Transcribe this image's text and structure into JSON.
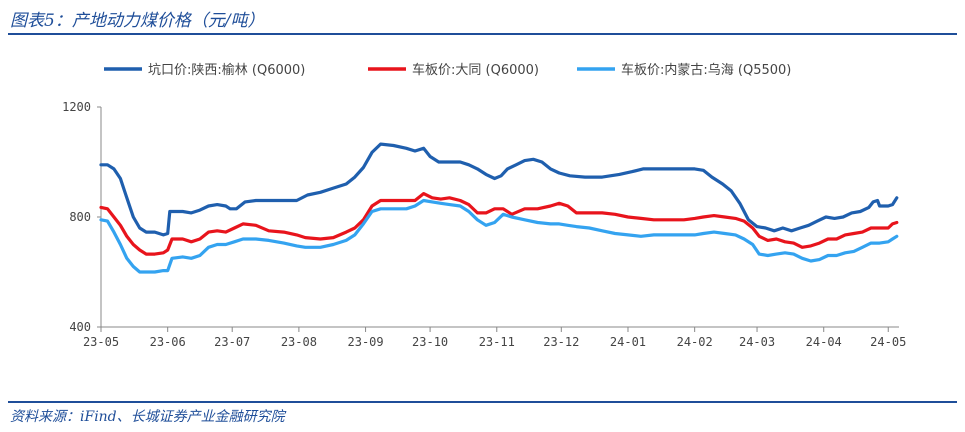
{
  "header": {
    "title": "图表5：产地动力煤价格（元/吨）"
  },
  "footer": {
    "source": "资料来源：iFind、长城证券产业金融研究院"
  },
  "chart_data": {
    "type": "line",
    "x_ticks": [
      "23-05",
      "23-06",
      "23-07",
      "23-08",
      "23-09",
      "23-10",
      "23-11",
      "23-12",
      "24-01",
      "24-02",
      "24-03",
      "24-04",
      "24-05"
    ],
    "y_ticks": [
      "400",
      "800",
      "1200"
    ],
    "ylim": [
      400,
      1200
    ],
    "xlim": [
      "2023-05-01",
      "2024-05-06"
    ],
    "grid": false,
    "legend_position": "top",
    "series": [
      {
        "name": "坑口价:陕西:榆林 (Q6000)",
        "color": "#1f5fae",
        "points": [
          [
            "2023-05-01",
            990
          ],
          [
            "2023-05-04",
            990
          ],
          [
            "2023-05-07",
            975
          ],
          [
            "2023-05-10",
            940
          ],
          [
            "2023-05-13",
            870
          ],
          [
            "2023-05-16",
            800
          ],
          [
            "2023-05-19",
            760
          ],
          [
            "2023-05-22",
            745
          ],
          [
            "2023-05-26",
            745
          ],
          [
            "2023-05-30",
            735
          ],
          [
            "2023-06-01",
            740
          ],
          [
            "2023-06-02",
            820
          ],
          [
            "2023-06-08",
            820
          ],
          [
            "2023-06-12",
            815
          ],
          [
            "2023-06-16",
            825
          ],
          [
            "2023-06-20",
            840
          ],
          [
            "2023-06-24",
            845
          ],
          [
            "2023-06-28",
            840
          ],
          [
            "2023-06-30",
            830
          ],
          [
            "2023-07-03",
            830
          ],
          [
            "2023-07-07",
            855
          ],
          [
            "2023-07-12",
            860
          ],
          [
            "2023-07-18",
            860
          ],
          [
            "2023-07-25",
            860
          ],
          [
            "2023-07-31",
            860
          ],
          [
            "2023-08-05",
            880
          ],
          [
            "2023-08-11",
            890
          ],
          [
            "2023-08-17",
            905
          ],
          [
            "2023-08-23",
            920
          ],
          [
            "2023-08-27",
            945
          ],
          [
            "2023-08-31",
            980
          ],
          [
            "2023-09-04",
            1035
          ],
          [
            "2023-09-08",
            1065
          ],
          [
            "2023-09-14",
            1060
          ],
          [
            "2023-09-20",
            1050
          ],
          [
            "2023-09-24",
            1040
          ],
          [
            "2023-09-28",
            1050
          ],
          [
            "2023-10-01",
            1020
          ],
          [
            "2023-10-05",
            1000
          ],
          [
            "2023-10-10",
            1000
          ],
          [
            "2023-10-15",
            1000
          ],
          [
            "2023-10-19",
            990
          ],
          [
            "2023-10-23",
            975
          ],
          [
            "2023-10-27",
            955
          ],
          [
            "2023-10-31",
            940
          ],
          [
            "2023-11-03",
            950
          ],
          [
            "2023-11-06",
            975
          ],
          [
            "2023-11-10",
            990
          ],
          [
            "2023-11-14",
            1005
          ],
          [
            "2023-11-18",
            1010
          ],
          [
            "2023-11-22",
            1000
          ],
          [
            "2023-11-26",
            975
          ],
          [
            "2023-11-30",
            960
          ],
          [
            "2023-12-05",
            950
          ],
          [
            "2023-12-12",
            945
          ],
          [
            "2023-12-20",
            945
          ],
          [
            "2023-12-28",
            955
          ],
          [
            "2024-01-03",
            965
          ],
          [
            "2024-01-08",
            975
          ],
          [
            "2024-01-15",
            975
          ],
          [
            "2024-01-25",
            975
          ],
          [
            "2024-02-01",
            975
          ],
          [
            "2024-02-05",
            970
          ],
          [
            "2024-02-09",
            945
          ],
          [
            "2024-02-14",
            920
          ],
          [
            "2024-02-18",
            895
          ],
          [
            "2024-02-22",
            850
          ],
          [
            "2024-02-26",
            790
          ],
          [
            "2024-03-01",
            765
          ],
          [
            "2024-03-05",
            760
          ],
          [
            "2024-03-09",
            750
          ],
          [
            "2024-03-13",
            760
          ],
          [
            "2024-03-17",
            750
          ],
          [
            "2024-03-21",
            760
          ],
          [
            "2024-03-25",
            770
          ],
          [
            "2024-03-29",
            785
          ],
          [
            "2024-04-02",
            800
          ],
          [
            "2024-04-06",
            795
          ],
          [
            "2024-04-10",
            800
          ],
          [
            "2024-04-14",
            815
          ],
          [
            "2024-04-18",
            820
          ],
          [
            "2024-04-22",
            835
          ],
          [
            "2024-04-24",
            855
          ],
          [
            "2024-04-26",
            860
          ],
          [
            "2024-04-27",
            840
          ],
          [
            "2024-05-01",
            840
          ],
          [
            "2024-05-03",
            845
          ],
          [
            "2024-05-05",
            870
          ]
        ]
      },
      {
        "name": "车板价:大同 (Q6000)",
        "color": "#e8141c",
        "points": [
          [
            "2023-05-01",
            835
          ],
          [
            "2023-05-04",
            830
          ],
          [
            "2023-05-07",
            800
          ],
          [
            "2023-05-10",
            770
          ],
          [
            "2023-05-13",
            730
          ],
          [
            "2023-05-16",
            700
          ],
          [
            "2023-05-19",
            680
          ],
          [
            "2023-05-22",
            665
          ],
          [
            "2023-05-26",
            665
          ],
          [
            "2023-05-30",
            670
          ],
          [
            "2023-06-01",
            680
          ],
          [
            "2023-06-03",
            720
          ],
          [
            "2023-06-08",
            720
          ],
          [
            "2023-06-12",
            710
          ],
          [
            "2023-06-16",
            720
          ],
          [
            "2023-06-20",
            745
          ],
          [
            "2023-06-24",
            750
          ],
          [
            "2023-06-28",
            745
          ],
          [
            "2023-07-02",
            760
          ],
          [
            "2023-07-06",
            775
          ],
          [
            "2023-07-12",
            770
          ],
          [
            "2023-07-18",
            750
          ],
          [
            "2023-07-25",
            745
          ],
          [
            "2023-07-31",
            735
          ],
          [
            "2023-08-04",
            725
          ],
          [
            "2023-08-11",
            720
          ],
          [
            "2023-08-17",
            725
          ],
          [
            "2023-08-23",
            745
          ],
          [
            "2023-08-27",
            760
          ],
          [
            "2023-08-31",
            790
          ],
          [
            "2023-09-04",
            840
          ],
          [
            "2023-09-08",
            860
          ],
          [
            "2023-09-14",
            860
          ],
          [
            "2023-09-20",
            860
          ],
          [
            "2023-09-24",
            860
          ],
          [
            "2023-09-28",
            885
          ],
          [
            "2023-10-02",
            870
          ],
          [
            "2023-10-06",
            865
          ],
          [
            "2023-10-10",
            870
          ],
          [
            "2023-10-15",
            860
          ],
          [
            "2023-10-19",
            845
          ],
          [
            "2023-10-23",
            815
          ],
          [
            "2023-10-27",
            815
          ],
          [
            "2023-10-31",
            830
          ],
          [
            "2023-11-04",
            830
          ],
          [
            "2023-11-08",
            810
          ],
          [
            "2023-11-14",
            830
          ],
          [
            "2023-11-20",
            830
          ],
          [
            "2023-11-26",
            840
          ],
          [
            "2023-11-30",
            850
          ],
          [
            "2023-12-04",
            840
          ],
          [
            "2023-12-08",
            815
          ],
          [
            "2023-12-14",
            815
          ],
          [
            "2023-12-20",
            815
          ],
          [
            "2023-12-26",
            810
          ],
          [
            "2024-01-01",
            800
          ],
          [
            "2024-01-07",
            795
          ],
          [
            "2024-01-13",
            790
          ],
          [
            "2024-01-20",
            790
          ],
          [
            "2024-01-27",
            790
          ],
          [
            "2024-02-01",
            795
          ],
          [
            "2024-02-05",
            800
          ],
          [
            "2024-02-10",
            805
          ],
          [
            "2024-02-15",
            800
          ],
          [
            "2024-02-20",
            795
          ],
          [
            "2024-02-24",
            785
          ],
          [
            "2024-02-28",
            760
          ],
          [
            "2024-03-02",
            730
          ],
          [
            "2024-03-06",
            715
          ],
          [
            "2024-03-10",
            720
          ],
          [
            "2024-03-14",
            710
          ],
          [
            "2024-03-18",
            705
          ],
          [
            "2024-03-22",
            690
          ],
          [
            "2024-03-26",
            695
          ],
          [
            "2024-03-30",
            705
          ],
          [
            "2024-04-03",
            720
          ],
          [
            "2024-04-07",
            720
          ],
          [
            "2024-04-11",
            735
          ],
          [
            "2024-04-15",
            740
          ],
          [
            "2024-04-19",
            745
          ],
          [
            "2024-04-23",
            760
          ],
          [
            "2024-04-26",
            760
          ],
          [
            "2024-05-01",
            760
          ],
          [
            "2024-05-03",
            775
          ],
          [
            "2024-05-05",
            780
          ]
        ]
      },
      {
        "name": "车板价:内蒙古:乌海 (Q5500)",
        "color": "#34a3f0",
        "points": [
          [
            "2023-05-01",
            790
          ],
          [
            "2023-05-04",
            785
          ],
          [
            "2023-05-07",
            745
          ],
          [
            "2023-05-10",
            700
          ],
          [
            "2023-05-13",
            650
          ],
          [
            "2023-05-16",
            620
          ],
          [
            "2023-05-19",
            600
          ],
          [
            "2023-05-22",
            600
          ],
          [
            "2023-05-26",
            600
          ],
          [
            "2023-05-30",
            605
          ],
          [
            "2023-06-01",
            605
          ],
          [
            "2023-06-03",
            650
          ],
          [
            "2023-06-08",
            655
          ],
          [
            "2023-06-12",
            650
          ],
          [
            "2023-06-16",
            660
          ],
          [
            "2023-06-20",
            690
          ],
          [
            "2023-06-24",
            700
          ],
          [
            "2023-06-28",
            700
          ],
          [
            "2023-07-02",
            710
          ],
          [
            "2023-07-06",
            720
          ],
          [
            "2023-07-12",
            720
          ],
          [
            "2023-07-18",
            715
          ],
          [
            "2023-07-25",
            705
          ],
          [
            "2023-07-31",
            695
          ],
          [
            "2023-08-04",
            690
          ],
          [
            "2023-08-11",
            690
          ],
          [
            "2023-08-17",
            700
          ],
          [
            "2023-08-23",
            715
          ],
          [
            "2023-08-27",
            735
          ],
          [
            "2023-08-31",
            775
          ],
          [
            "2023-09-04",
            820
          ],
          [
            "2023-09-08",
            830
          ],
          [
            "2023-09-14",
            830
          ],
          [
            "2023-09-20",
            830
          ],
          [
            "2023-09-24",
            840
          ],
          [
            "2023-09-28",
            860
          ],
          [
            "2023-10-02",
            855
          ],
          [
            "2023-10-06",
            850
          ],
          [
            "2023-10-10",
            845
          ],
          [
            "2023-10-15",
            840
          ],
          [
            "2023-10-19",
            820
          ],
          [
            "2023-10-23",
            790
          ],
          [
            "2023-10-27",
            770
          ],
          [
            "2023-10-31",
            780
          ],
          [
            "2023-11-04",
            810
          ],
          [
            "2023-11-08",
            800
          ],
          [
            "2023-11-14",
            790
          ],
          [
            "2023-11-20",
            780
          ],
          [
            "2023-11-26",
            775
          ],
          [
            "2023-11-30",
            775
          ],
          [
            "2023-12-04",
            770
          ],
          [
            "2023-12-08",
            765
          ],
          [
            "2023-12-14",
            760
          ],
          [
            "2023-12-20",
            750
          ],
          [
            "2023-12-26",
            740
          ],
          [
            "2024-01-01",
            735
          ],
          [
            "2024-01-07",
            730
          ],
          [
            "2024-01-13",
            735
          ],
          [
            "2024-01-20",
            735
          ],
          [
            "2024-01-27",
            735
          ],
          [
            "2024-02-01",
            735
          ],
          [
            "2024-02-05",
            740
          ],
          [
            "2024-02-10",
            745
          ],
          [
            "2024-02-15",
            740
          ],
          [
            "2024-02-20",
            735
          ],
          [
            "2024-02-24",
            720
          ],
          [
            "2024-02-28",
            700
          ],
          [
            "2024-03-02",
            665
          ],
          [
            "2024-03-06",
            660
          ],
          [
            "2024-03-10",
            665
          ],
          [
            "2024-03-14",
            670
          ],
          [
            "2024-03-18",
            665
          ],
          [
            "2024-03-22",
            650
          ],
          [
            "2024-03-26",
            640
          ],
          [
            "2024-03-30",
            645
          ],
          [
            "2024-04-03",
            660
          ],
          [
            "2024-04-07",
            660
          ],
          [
            "2024-04-11",
            670
          ],
          [
            "2024-04-15",
            675
          ],
          [
            "2024-04-19",
            690
          ],
          [
            "2024-04-23",
            705
          ],
          [
            "2024-04-27",
            705
          ],
          [
            "2024-05-01",
            710
          ],
          [
            "2024-05-03",
            720
          ],
          [
            "2024-05-05",
            730
          ]
        ]
      }
    ]
  }
}
